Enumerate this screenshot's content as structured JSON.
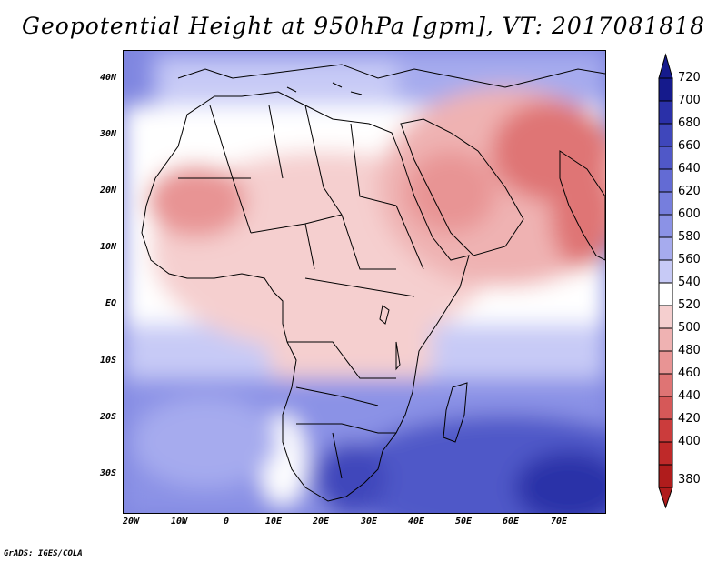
{
  "title": "Geopotential Height at 950hPa [gpm], VT: 2017081818",
  "credit": "GrADS: IGES/COLA",
  "axes": {
    "lat_labels": [
      "40N",
      "30N",
      "20N",
      "10N",
      "EQ",
      "10S",
      "20S",
      "30S"
    ],
    "lon_labels": [
      "20W",
      "10W",
      "0",
      "10E",
      "20E",
      "30E",
      "40E",
      "50E",
      "60E",
      "70E"
    ]
  },
  "colorbar": {
    "levels": [
      720,
      700,
      680,
      660,
      640,
      620,
      600,
      580,
      560,
      540,
      520,
      500,
      480,
      460,
      440,
      420,
      400,
      380
    ],
    "colors": [
      "#151a8c",
      "#2a30a8",
      "#3f47bb",
      "#5058c8",
      "#636bd4",
      "#767edd",
      "#8b92e6",
      "#a6abee",
      "#c7caf6",
      "#ffffff",
      "#f5cfcf",
      "#efb2b2",
      "#e89494",
      "#df7474",
      "#d65858",
      "#cb3c3c",
      "#bf2929",
      "#b01c1c"
    ],
    "top_arrow_color": "#151a8c",
    "bottom_arrow_color": "#b01c1c"
  },
  "map": {
    "field": "Geopotential Height 950hPa",
    "units": "gpm",
    "valid_time": "2017081818",
    "lon_range": [
      -25,
      80
    ],
    "lat_range": [
      -37,
      45
    ]
  }
}
